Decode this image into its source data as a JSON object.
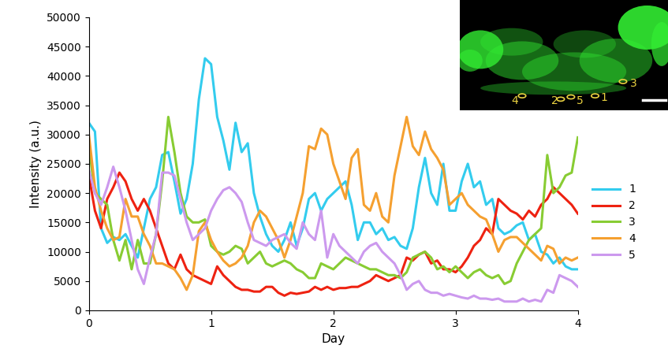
{
  "chart_data": {
    "type": "line",
    "x_label": "Day",
    "y_label": "Intensity (a.u.)",
    "annotations": [
      "4",
      "2",
      "5",
      "1",
      "3"
    ],
    "x": [
      0.0,
      0.05,
      0.1,
      0.15,
      0.2,
      0.25,
      0.3,
      0.35,
      0.4,
      0.45,
      0.5,
      0.55,
      0.6,
      0.65,
      0.7,
      0.75,
      0.8,
      0.85,
      0.9,
      0.95,
      1.0,
      1.05,
      1.1,
      1.15,
      1.2,
      1.25,
      1.3,
      1.35,
      1.4,
      1.45,
      1.5,
      1.55,
      1.6,
      1.65,
      1.7,
      1.75,
      1.8,
      1.85,
      1.9,
      1.95,
      2.0,
      2.05,
      2.1,
      2.15,
      2.2,
      2.25,
      2.3,
      2.35,
      2.4,
      2.45,
      2.5,
      2.55,
      2.6,
      2.65,
      2.7,
      2.75,
      2.8,
      2.85,
      2.9,
      2.95,
      3.0,
      3.05,
      3.1,
      3.15,
      3.2,
      3.25,
      3.3,
      3.35,
      3.4,
      3.45,
      3.5,
      3.55,
      3.6,
      3.65,
      3.7,
      3.75,
      3.8,
      3.85,
      3.9,
      3.95,
      4.0
    ],
    "xlim": [
      0,
      4
    ],
    "xticks": [
      0,
      1,
      2,
      3,
      4
    ],
    "ylim": [
      0,
      50000
    ],
    "yticks": [
      0,
      5000,
      10000,
      15000,
      20000,
      25000,
      30000,
      35000,
      40000,
      45000,
      50000
    ],
    "legend": "right",
    "series": [
      {
        "name": "1",
        "color": "#33ccee",
        "values": [
          32000,
          30500,
          14000,
          11500,
          12500,
          12000,
          13000,
          11000,
          9000,
          14000,
          19000,
          21000,
          26500,
          27000,
          22000,
          16500,
          19000,
          25000,
          36000,
          43000,
          42000,
          33000,
          29000,
          24000,
          32000,
          27000,
          28500,
          20000,
          16000,
          13000,
          11000,
          10000,
          12000,
          15000,
          11000,
          14000,
          19000,
          20000,
          17000,
          19000,
          20000,
          21000,
          22000,
          18000,
          12000,
          15000,
          15000,
          13000,
          14000,
          12000,
          12500,
          11000,
          10500,
          14000,
          21000,
          26000,
          20000,
          18000,
          25000,
          17000,
          17000,
          22000,
          25000,
          21000,
          22000,
          18000,
          19000,
          14000,
          13000,
          13500,
          14500,
          15000,
          12000,
          13000,
          10000,
          9500,
          8000,
          9000,
          7500,
          7000,
          7000
        ]
      },
      {
        "name": "2",
        "color": "#ee2211",
        "values": [
          23000,
          17000,
          14000,
          19000,
          21000,
          23500,
          22000,
          19000,
          17000,
          19000,
          17000,
          14000,
          11000,
          8000,
          7000,
          9500,
          7000,
          6000,
          5500,
          5000,
          4500,
          7500,
          6000,
          5000,
          4000,
          3500,
          3500,
          3200,
          3200,
          4000,
          4000,
          3000,
          2500,
          3000,
          2800,
          3000,
          3200,
          4000,
          3500,
          4000,
          3500,
          3800,
          3800,
          4000,
          4000,
          4500,
          5000,
          6000,
          5500,
          5000,
          5500,
          6000,
          9000,
          8500,
          9500,
          10000,
          8000,
          8500,
          7000,
          7000,
          6500,
          7500,
          9000,
          11000,
          12000,
          14000,
          13000,
          19000,
          18000,
          17000,
          16500,
          15500,
          17000,
          16000,
          18000,
          19000,
          21000,
          20000,
          19000,
          18000,
          16500
        ]
      },
      {
        "name": "3",
        "color": "#88cc33",
        "values": [
          28000,
          20000,
          19000,
          18000,
          12000,
          8500,
          12000,
          7000,
          12000,
          8000,
          8000,
          13000,
          22000,
          33000,
          27000,
          20000,
          16000,
          15000,
          15000,
          15500,
          11000,
          10000,
          9500,
          10000,
          11000,
          10500,
          8000,
          9000,
          10000,
          8000,
          7500,
          8000,
          8500,
          8000,
          7000,
          6500,
          5500,
          5500,
          8000,
          7500,
          7000,
          8000,
          9000,
          8500,
          8000,
          7500,
          7000,
          7000,
          6500,
          6000,
          6000,
          5500,
          6500,
          9000,
          9500,
          10000,
          9000,
          7000,
          7500,
          6500,
          7500,
          6500,
          5500,
          6500,
          7000,
          6000,
          5500,
          6000,
          4500,
          5000,
          8000,
          10000,
          12000,
          13000,
          14000,
          26500,
          20000,
          21000,
          23000,
          23500,
          29500
        ]
      },
      {
        "name": "4",
        "color": "#f5a030",
        "values": [
          30000,
          21000,
          17000,
          14000,
          12000,
          12500,
          19000,
          16000,
          16000,
          13000,
          11000,
          8000,
          8000,
          7500,
          7000,
          5500,
          3500,
          6000,
          13500,
          15000,
          12000,
          10000,
          8500,
          7500,
          8000,
          9000,
          11000,
          15000,
          17000,
          16000,
          14000,
          12000,
          9000,
          12000,
          16000,
          20000,
          28000,
          27500,
          31000,
          30000,
          25000,
          22000,
          19000,
          26000,
          27500,
          18000,
          17000,
          20000,
          16000,
          15000,
          23000,
          28000,
          33000,
          28000,
          26500,
          30500,
          27500,
          26000,
          24000,
          18000,
          19000,
          20000,
          18000,
          17000,
          16000,
          15500,
          13000,
          10000,
          12000,
          12500,
          12500,
          11500,
          10500,
          9500,
          8500,
          11000,
          10500,
          8000,
          9000,
          8500,
          9000
        ]
      },
      {
        "name": "5",
        "color": "#cc99ee",
        "values": [
          24000,
          20000,
          18000,
          21000,
          24500,
          21000,
          17000,
          12000,
          7000,
          4500,
          9000,
          13000,
          23500,
          23500,
          23000,
          19000,
          15000,
          12000,
          13000,
          14000,
          17000,
          19000,
          20500,
          21000,
          20000,
          18500,
          15000,
          12000,
          11500,
          11000,
          12000,
          12500,
          13000,
          11500,
          10500,
          15000,
          13000,
          12000,
          17000,
          9000,
          13000,
          11000,
          10000,
          9000,
          8000,
          10000,
          11000,
          11500,
          10000,
          9000,
          8000,
          6000,
          3500,
          4500,
          5000,
          3500,
          3000,
          3000,
          2500,
          2800,
          2500,
          2200,
          2000,
          2500,
          2000,
          2000,
          1800,
          2000,
          1500,
          1500,
          1500,
          2000,
          1500,
          1800,
          1500,
          3500,
          3000,
          6000,
          5500,
          5000,
          4000
        ]
      }
    ]
  }
}
